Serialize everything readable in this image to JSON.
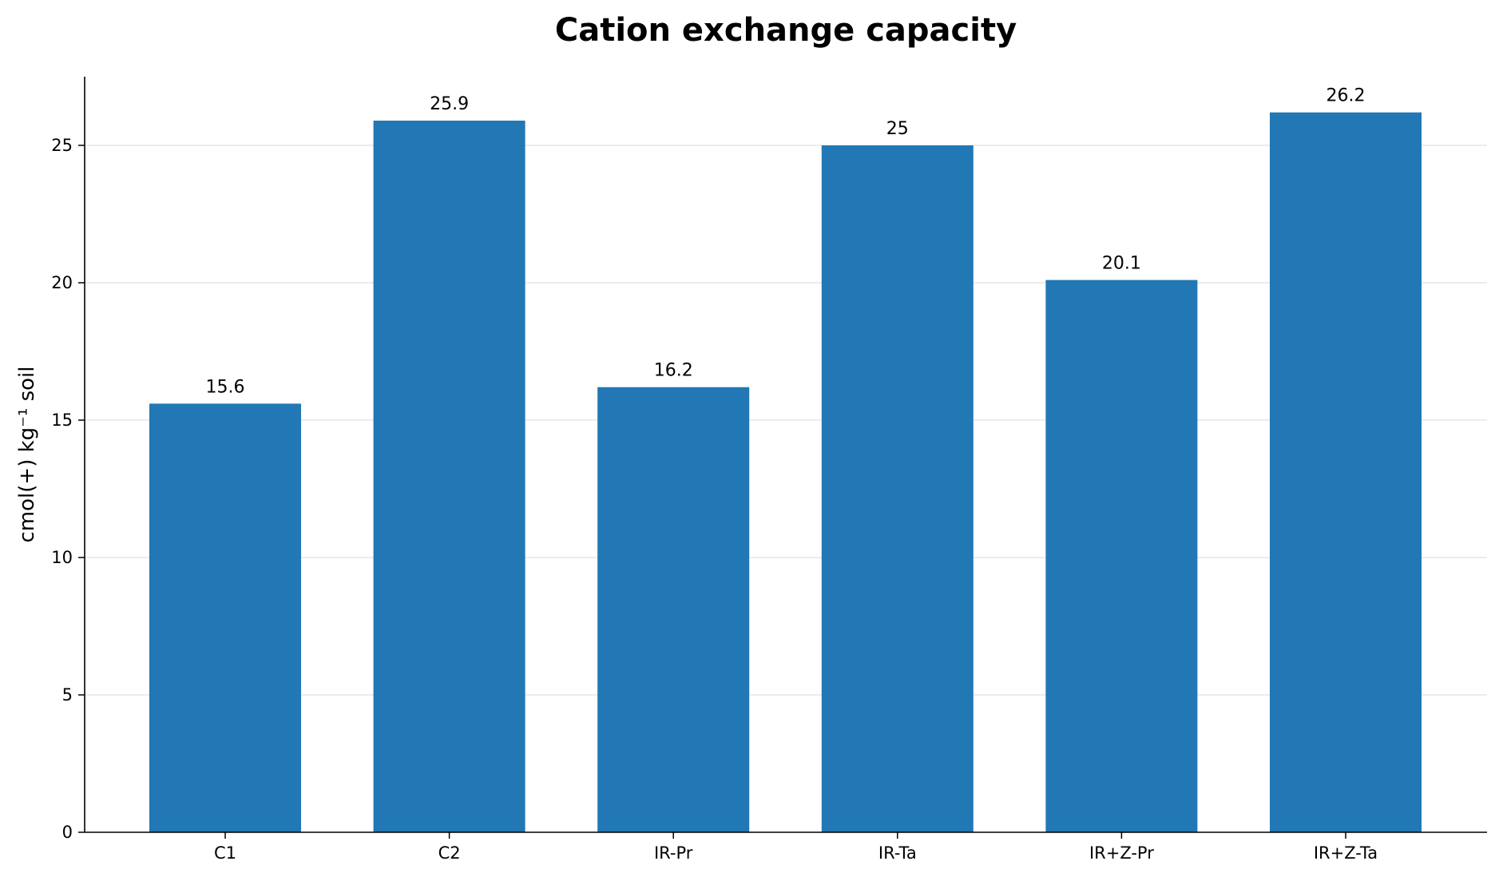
{
  "chart_data": {
    "type": "bar",
    "title": "Cation exchange capacity",
    "xlabel": "",
    "ylabel": "cmol(+) kg⁻¹ soil",
    "categories": [
      "C1",
      "C2",
      "IR-Pr",
      "IR-Ta",
      "IR+Z-Pr",
      "IR+Z-Ta"
    ],
    "values": [
      15.6,
      25.9,
      16.2,
      25,
      20.1,
      26.2
    ],
    "data_labels": [
      "15.6",
      "25.9",
      "16.2",
      "25",
      "20.1",
      "26.2"
    ],
    "ylim": [
      0,
      27.5
    ],
    "yticks": [
      0,
      5,
      10,
      15,
      20,
      25
    ],
    "ytick_labels": [
      "0",
      "5",
      "10",
      "15",
      "20",
      "25"
    ],
    "grid": "horizontal",
    "bar_color": "#2178b4",
    "legend": "none"
  }
}
